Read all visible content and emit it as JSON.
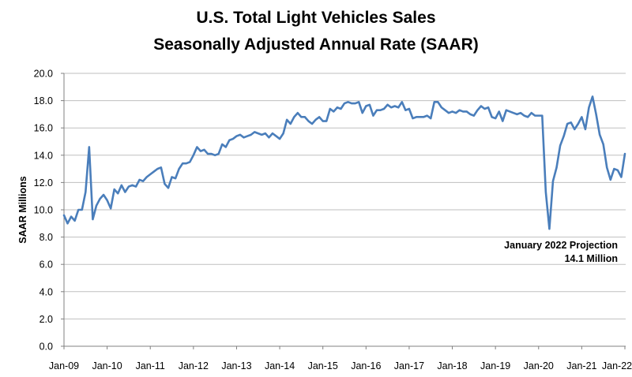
{
  "chart_data": {
    "type": "line",
    "title": "U.S. Total Light Vehicles Sales",
    "subtitle": "Seasonally Adjusted Annual Rate (SAAR)",
    "xlabel": "",
    "ylabel": "SAAR Millions",
    "ylim": [
      0,
      20
    ],
    "yticks": [
      "0.0",
      "2.0",
      "4.0",
      "6.0",
      "8.0",
      "10.0",
      "12.0",
      "14.0",
      "16.0",
      "18.0",
      "20.0"
    ],
    "xtick_labels": [
      "Jan-09",
      "Jan-10",
      "Jan-11",
      "Jan-12",
      "Jan-13",
      "Jan-14",
      "Jan-15",
      "Jan-16",
      "Jan-17",
      "Jan-18",
      "Jan-19",
      "Jan-20",
      "Jan-21",
      "Jan-22"
    ],
    "x_start": "Jan-09",
    "x_end": "Jan-22",
    "grid": "horizontal",
    "line_color": "#4a7ebb",
    "annotation": {
      "line1": "January 2022 Projection",
      "line2": "14.1 Million"
    },
    "series": [
      {
        "values": [
          9.6,
          9.0,
          9.5,
          9.2,
          10.0,
          10.0,
          11.3,
          14.6,
          9.3,
          10.3,
          10.8,
          11.1,
          10.7,
          10.1,
          11.5,
          11.2,
          11.8,
          11.3,
          11.7,
          11.8,
          11.7,
          12.2,
          12.1,
          12.4,
          12.6,
          12.8,
          13.0,
          13.1,
          11.9,
          11.6,
          12.4,
          12.3,
          13.0,
          13.4,
          13.4,
          13.5,
          14.0,
          14.6,
          14.3,
          14.4,
          14.1,
          14.1,
          14.0,
          14.1,
          14.8,
          14.6,
          15.1,
          15.2,
          15.4,
          15.5,
          15.3,
          15.4,
          15.5,
          15.7,
          15.6,
          15.5,
          15.6,
          15.3,
          15.6,
          15.4,
          15.2,
          15.6,
          16.6,
          16.3,
          16.8,
          17.1,
          16.8,
          16.8,
          16.5,
          16.3,
          16.6,
          16.8,
          16.5,
          16.5,
          17.4,
          17.2,
          17.5,
          17.4,
          17.8,
          17.9,
          17.8,
          17.8,
          17.9,
          17.1,
          17.6,
          17.7,
          16.9,
          17.3,
          17.3,
          17.4,
          17.7,
          17.5,
          17.6,
          17.5,
          17.9,
          17.3,
          17.4,
          16.7,
          16.8,
          16.8,
          16.8,
          16.9,
          16.7,
          17.9,
          17.9,
          17.5,
          17.3,
          17.1,
          17.2,
          17.1,
          17.3,
          17.2,
          17.2,
          17.0,
          16.9,
          17.3,
          17.6,
          17.4,
          17.5,
          16.8,
          16.7,
          17.2,
          16.5,
          17.3,
          17.2,
          17.1,
          17.0,
          17.1,
          16.9,
          16.8,
          17.1,
          16.9,
          16.9,
          16.9,
          11.3,
          8.6,
          12.1,
          13.1,
          14.7,
          15.4,
          16.3,
          16.4,
          15.9,
          16.3,
          16.8,
          15.9,
          17.5,
          18.3,
          17.0,
          15.5,
          14.8,
          13.1,
          12.2,
          13.0,
          12.9,
          12.4,
          14.1
        ]
      }
    ]
  }
}
